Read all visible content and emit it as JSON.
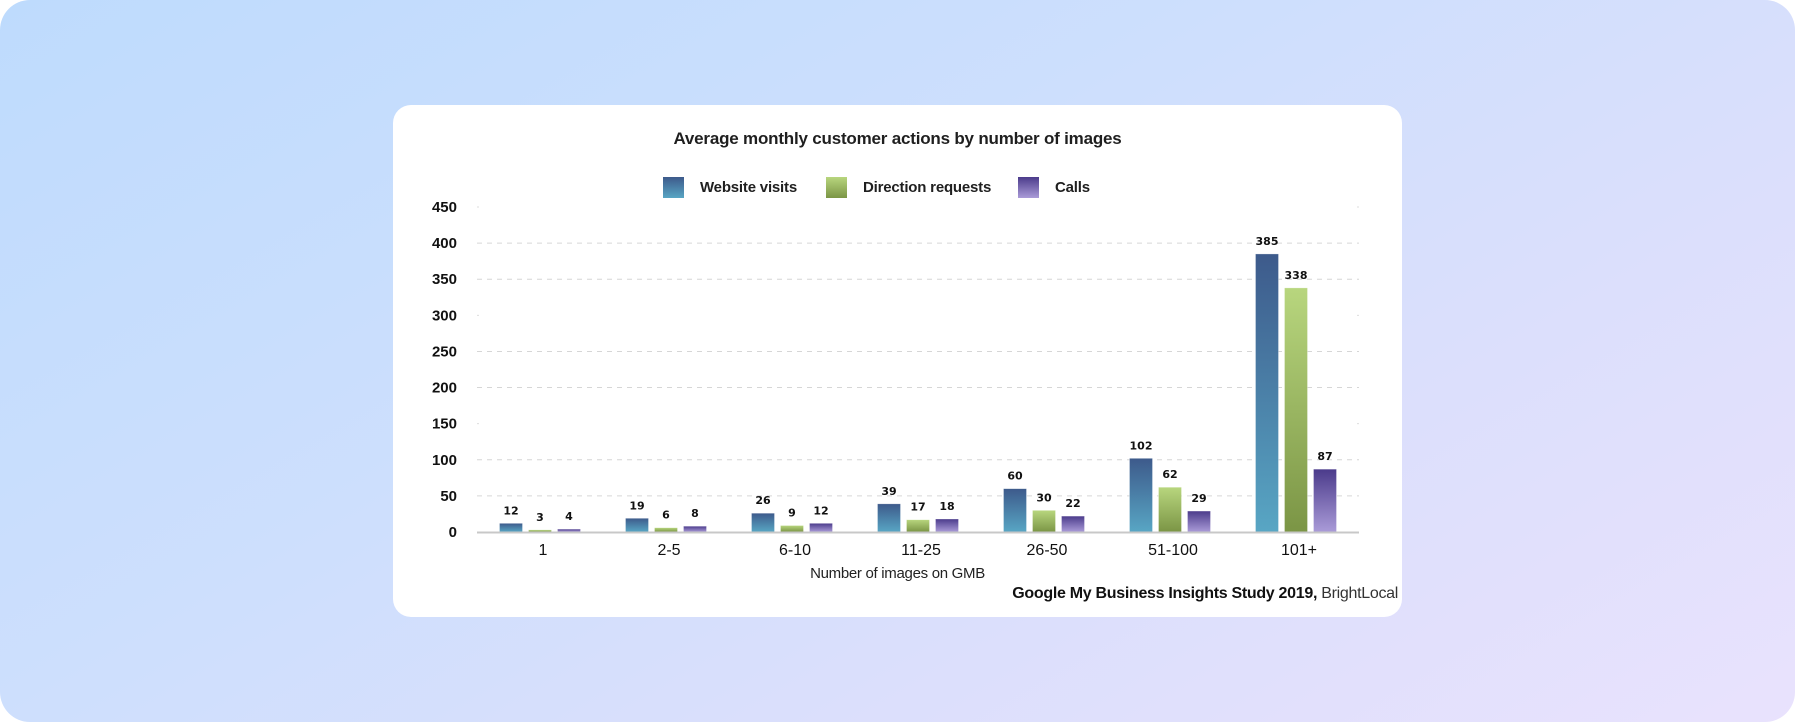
{
  "chart_data": {
    "type": "bar",
    "title": "Average monthly customer actions by number of images",
    "xlabel": "Number of images on GMB",
    "ylabel": "",
    "categories": [
      "1",
      "2-5",
      "6-10",
      "11-25",
      "26-50",
      "51-100",
      "101+"
    ],
    "series": [
      {
        "name": "Website visits",
        "values": [
          12,
          19,
          26,
          39,
          60,
          102,
          385
        ],
        "color_top": "#3d5a8b",
        "color_bottom": "#58a6c4"
      },
      {
        "name": "Direction requests",
        "values": [
          3,
          6,
          9,
          17,
          30,
          62,
          338
        ],
        "color_top": "#b8d67e",
        "color_bottom": "#7b9545"
      },
      {
        "name": "Calls",
        "values": [
          4,
          8,
          12,
          18,
          22,
          29,
          87
        ],
        "color_top": "#4b3b8b",
        "color_bottom": "#aa9bd8"
      }
    ],
    "ylim": [
      0,
      450
    ],
    "yticks": [
      0,
      50,
      100,
      150,
      200,
      250,
      300,
      350,
      400,
      450
    ],
    "grid": true,
    "legend_position": "top-center",
    "data_labels": true
  },
  "source": {
    "study": "Google My Business Insights Study 2019,",
    "publisher": "BrightLocal"
  }
}
